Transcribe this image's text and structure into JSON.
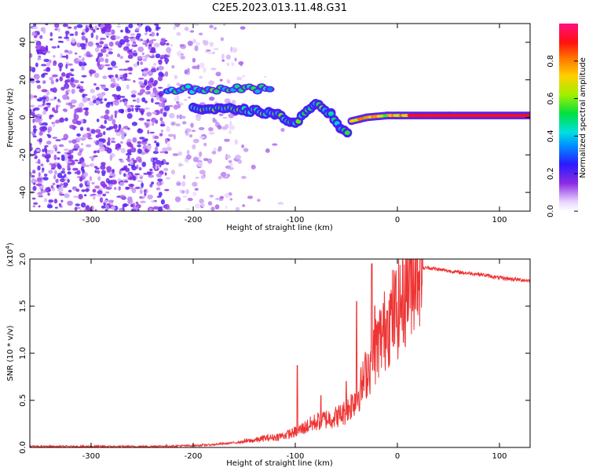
{
  "figure_title": "C2E5.2023.013.11.48.G31",
  "colors": {
    "snr_line": "#ee3333",
    "axis": "#000000",
    "background": "#ffffff"
  },
  "chart_data": [
    {
      "type": "heatmap",
      "title": "C2E5.2023.013.11.48.G31",
      "xlabel": "Height of straight line (km)",
      "ylabel": "Frequency (Hz)",
      "xlim": [
        -360,
        130
      ],
      "ylim": [
        -50,
        50
      ],
      "x_ticks": [
        -300,
        -200,
        -100,
        0,
        100
      ],
      "x_tick_labels": [
        "-300",
        "-200",
        "-100",
        "0",
        "100"
      ],
      "y_ticks": [
        -40,
        -20,
        0,
        20,
        40
      ],
      "y_tick_labels": [
        "-40",
        "-20",
        "0",
        "20",
        "40"
      ],
      "colorbar": {
        "label": "Normalized spectral amplitude",
        "range": [
          0.0,
          1.0
        ],
        "ticks": [
          0.0,
          0.2,
          0.4,
          0.6,
          0.8
        ],
        "tick_labels": [
          "0.0",
          "0.2",
          "0.4",
          "0.6",
          "0.8"
        ],
        "colormap": "rainbow: white-violet-blue-cyan-green-yellow-orange-red-magenta"
      },
      "features": [
        {
          "name": "noise floor speckle",
          "x_range": [
            -360,
            -180
          ],
          "freq_range": [
            -50,
            50
          ],
          "amplitude": 0.15
        },
        {
          "name": "upper band",
          "x_range": [
            -225,
            -125
          ],
          "freq_center": 15,
          "amplitude": 0.45
        },
        {
          "name": "descending branch",
          "points": [
            [
              -200,
              5
            ],
            [
              -150,
              4
            ],
            [
              -120,
              2
            ],
            [
              -100,
              -3
            ],
            [
              -80,
              7
            ],
            [
              -65,
              2
            ],
            [
              -55,
              -6
            ],
            [
              -47,
              -10
            ]
          ],
          "amplitude": 0.5
        },
        {
          "name": "steady carrier",
          "points": [
            [
              -45,
              -2
            ],
            [
              -30,
              0
            ],
            [
              -10,
              1
            ],
            [
              0,
              1
            ],
            [
              50,
              1
            ],
            [
              130,
              1
            ]
          ],
          "amplitude": 0.9
        }
      ]
    },
    {
      "type": "line",
      "xlabel": "Height of straight line (km)",
      "ylabel": "SNR (10 * v/v)",
      "y_scale_label": "(x10",
      "y_scale_exponent": "4",
      "y_scale_suffix": ")",
      "xlim": [
        -360,
        130
      ],
      "ylim": [
        0.0,
        2.0
      ],
      "x_ticks": [
        -300,
        -200,
        -100,
        0,
        100
      ],
      "x_tick_labels": [
        "-300",
        "-200",
        "-100",
        "0",
        "100"
      ],
      "y_ticks": [
        0.0,
        0.5,
        1.0,
        1.5,
        2.0
      ],
      "y_tick_labels": [
        "0.0",
        "0.5",
        "1.0",
        "1.5",
        "2.0"
      ],
      "series": [
        {
          "name": "SNR",
          "x": [
            -360,
            -300,
            -250,
            -200,
            -180,
            -160,
            -150,
            -140,
            -130,
            -120,
            -110,
            -100,
            -90,
            -80,
            -70,
            -60,
            -50,
            -40,
            -35,
            -30,
            -25,
            -20,
            -15,
            -10,
            -5,
            0,
            5,
            10,
            15,
            20,
            25,
            30,
            40,
            60,
            80,
            90,
            100,
            110,
            120,
            130
          ],
          "values": [
            0.01,
            0.01,
            0.01,
            0.02,
            0.03,
            0.05,
            0.06,
            0.07,
            0.09,
            0.1,
            0.12,
            0.15,
            0.2,
            0.25,
            0.28,
            0.3,
            0.35,
            0.5,
            0.6,
            0.75,
            0.85,
            1.0,
            1.1,
            1.2,
            1.3,
            1.35,
            1.45,
            1.6,
            1.75,
            1.85,
            1.9,
            1.91,
            1.89,
            1.86,
            1.84,
            1.82,
            1.8,
            1.79,
            1.78,
            1.77
          ]
        }
      ],
      "spikes": [
        {
          "x": -98,
          "value": 0.87
        },
        {
          "x": -75,
          "value": 0.55
        },
        {
          "x": -50,
          "value": 0.7
        },
        {
          "x": -40,
          "value": 1.55
        },
        {
          "x": -25,
          "value": 1.95
        },
        {
          "x": -22,
          "value": 1.5
        },
        {
          "x": -10,
          "value": 1.45
        }
      ]
    }
  ]
}
